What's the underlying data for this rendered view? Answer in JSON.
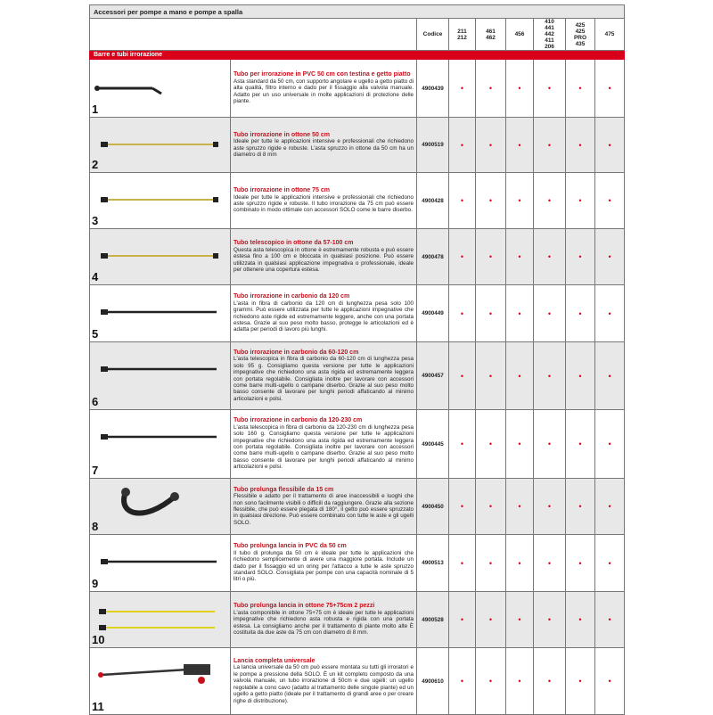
{
  "title": "Accessori per pompe a mano e pompe a spalla",
  "columns": {
    "code": "Codice",
    "models": [
      "211\n212",
      "461\n462",
      "456",
      "410\n441\n442\n411\n206",
      "425\n425\nPRO\n435",
      "475"
    ]
  },
  "section": "Barre e tubi irrorazione",
  "accent": "#d9001b",
  "rows": [
    {
      "n": "1",
      "title": "Tubo per irrorazione in PVC 50 cm con testina e getto piatto",
      "text": "Asta standard da 50 cm, con supporto angolare e ugello a getto piatto di alta qualità, filtro interno e dado per il fissaggio alla valvola manuale. Adatto per un uso universale in molte applicazioni di protezione delle piante.",
      "code": "4900439",
      "dot": "•"
    },
    {
      "n": "2",
      "title": "Tubo irrorazione in ottone 50 cm",
      "text": "Ideale per tutte le applicazioni intensive e professionali che richiedono aste spruzzo rigide e robuste. L'asta spruzzo in ottone da 50 cm ha un diametro di 8 mm",
      "code": "4900519",
      "dot": "•"
    },
    {
      "n": "3",
      "title": "Tubo irrorazione in ottone 75 cm",
      "text": "Ideale per tutte le applicazioni intensive e professionali che richiedono aste spruzzo rigide e robuste. Il tubo irrorazione da 75 cm può essere combinato in modo ottimale con accessori SOLO come le barre diserbo.",
      "code": "4900428",
      "dot": "•"
    },
    {
      "n": "4",
      "title": "Tubo telescopico in ottone da 57-100 cm",
      "text": "Questa asta telescopica in ottone è estremamente robusta e può essere estesa fino a 100 cm e bloccata in qualsiasi posizione. Può essere utilizzata in qualsiasi applicazione impegnativa o professionale, ideale per ottenere una copertura estesa.",
      "code": "4900478",
      "dot": "•"
    },
    {
      "n": "5",
      "title": "Tubo irrorazione in carbonio da 120 cm",
      "text": "L'asta in fibra di carbonio da 120 cm di lunghezza pesa solo 100 grammi. Può essere utilizzata per tutte le applicazioni impegnative che richiedono aste rigide ed estremamente leggere, anche con una portata estesa. Grazie al suo peso molto basso, protegge le articolazioni ed è adatta per periodi di lavoro più lunghi.",
      "code": "4900449",
      "dot": "•"
    },
    {
      "n": "6",
      "title": "Tubo irrorazione in carbonio da 60-120 cm",
      "text": "L'asta telescopica in fibra di carbonio da 60-120 cm di lunghezza pesa solo 95 g. Consigliamo questa versione per tutte le applicazioni impegnative che richiedono una asta rigida ed estremamente leggera con portata regolabile. Consigliata inoltre per lavorare con accessori come barre multi-ugello o campane diserbo. Grazie al suo peso molto basso consente di lavorare per lunghi periodi affaticando al minimo articolazioni e polsi.",
      "code": "4900457",
      "dot": "•"
    },
    {
      "n": "7",
      "title": "Tubo irrorazione in carbonio da 120-230 cm",
      "text": "L'asta telescopica in fibra di carbonio da 120-230 cm di lunghezza pesa solo 160 g. Consigliamo questa versione per tutte le applicazioni impegnative che richiedono una asta rigida ed estremamente leggera con portata regolabile. Consigliata inoltre per lavorare con accessori come barre multi-ugello o campane diserbo. Grazie al suo peso molto basso consente di lavorare per lunghi periodi affaticando al minimo articolazioni e polsi.",
      "code": "4900445",
      "dot": "•"
    },
    {
      "n": "8",
      "title": "Tubo prolunga flessibile da 15 cm",
      "text": "Flessibile e adatto per il trattamento di aree inaccessibili e luoghi che non sono facilmente visibili o difficili da raggiungere. Grazie alla sezione flessibile, che può essere piegata di 180°, il getto può essere spruzzato in qualsiasi direzione. Può essere combinato con tutte le aste e gli ugelli SOLO.",
      "code": "4900450",
      "dot": "•"
    },
    {
      "n": "9",
      "title": "Tubo prolunga lancia in PVC da 50 cm",
      "text": "Il tubo di prolunga da 50 cm è ideale per tutte le applicazioni che richiedono semplicemente di avere una maggiore portata. Include un dado per il fissaggio ed un oring per l'attacco a tutte le aste spruzzo standard SOLO. Consigliata per pompe con una capacità nominale di 5 litri o più.",
      "code": "4900513",
      "dot": "•"
    },
    {
      "n": "10",
      "title": "Tubo prolunga lancia in ottone 75+75cm 2 pezzi",
      "text": "L'asta componibile in ottone 75+75 cm è ideale per tutte le applicazioni impegnative che richiedono asta robusta e rigida con una portata estesa. La consigliamo anche per il trattamento di piante molto alte È costituita da due aste da 75 cm con diametro di 8 mm.",
      "code": "4900528",
      "dot": "•"
    },
    {
      "n": "11",
      "title": "Lancia completa universale",
      "text": "La lancia universale da 50 cm può essere montata su tutti gli irroratori e le pompe a pressione della SOLO. È un kit completo composto da una valvola manuale, un tubo irrorazione di 50cm e due ugelli: un ugello regolabile a cono cavo (adatto al trattamento delle singole piante) ed un ugello a getto piatto (ideale per il trattamento di grandi aree o per creare righe di distribuzione).",
      "code": "4900610",
      "dot": "•"
    }
  ]
}
